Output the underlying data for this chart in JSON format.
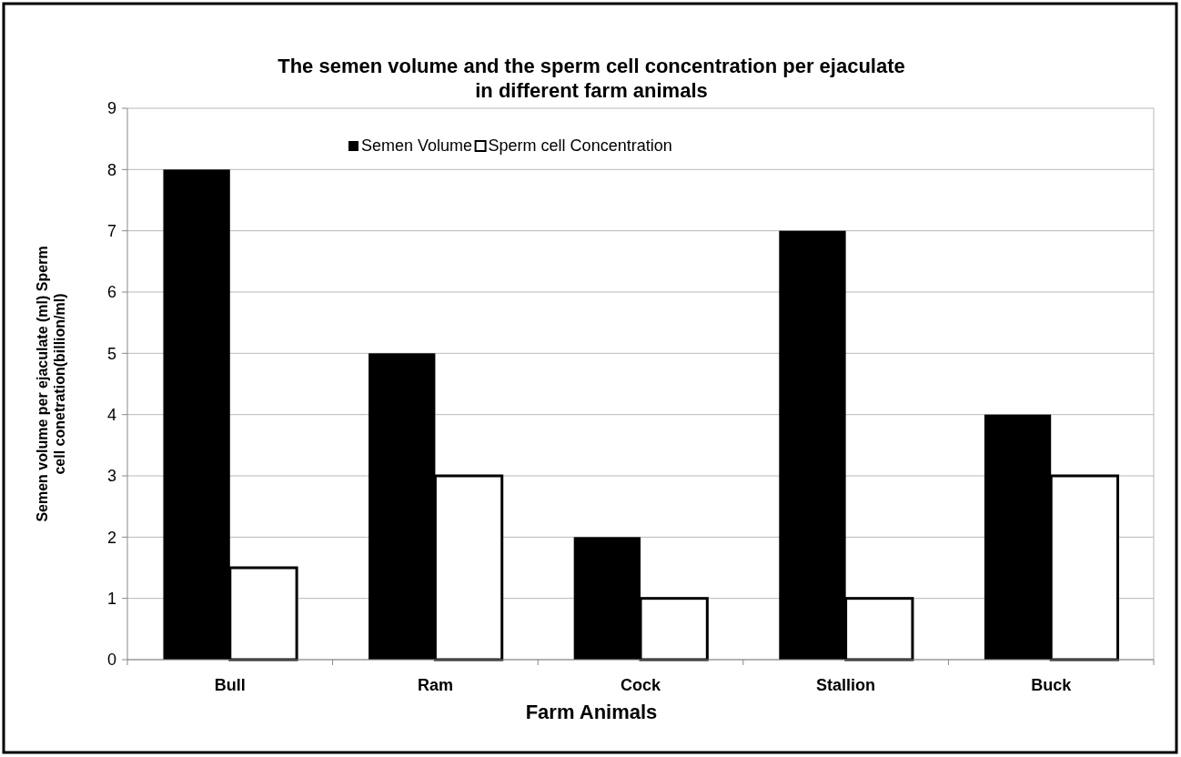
{
  "chart_data": {
    "type": "bar",
    "title": "The semen volume and the sperm cell concentration per ejaculate\nin different farm animals",
    "xlabel": "Farm Animals",
    "ylabel": "Semen volume per ejaculate (ml) Sperm cell conetration(billion/ml)",
    "categories": [
      "Bull",
      "Ram",
      "Cock",
      "Stallion",
      "Buck"
    ],
    "series": [
      {
        "name": "Semen Volume",
        "color": "#000000",
        "values": [
          8,
          5,
          2,
          7,
          4
        ]
      },
      {
        "name": "Sperm cell Concentration",
        "color": "#ffffff",
        "values": [
          1.5,
          3,
          1,
          1,
          3
        ]
      }
    ],
    "ylim": [
      0,
      9
    ],
    "yticks": [
      0,
      1,
      2,
      3,
      4,
      5,
      6,
      7,
      8,
      9
    ],
    "grid": "y",
    "legend": "top"
  }
}
